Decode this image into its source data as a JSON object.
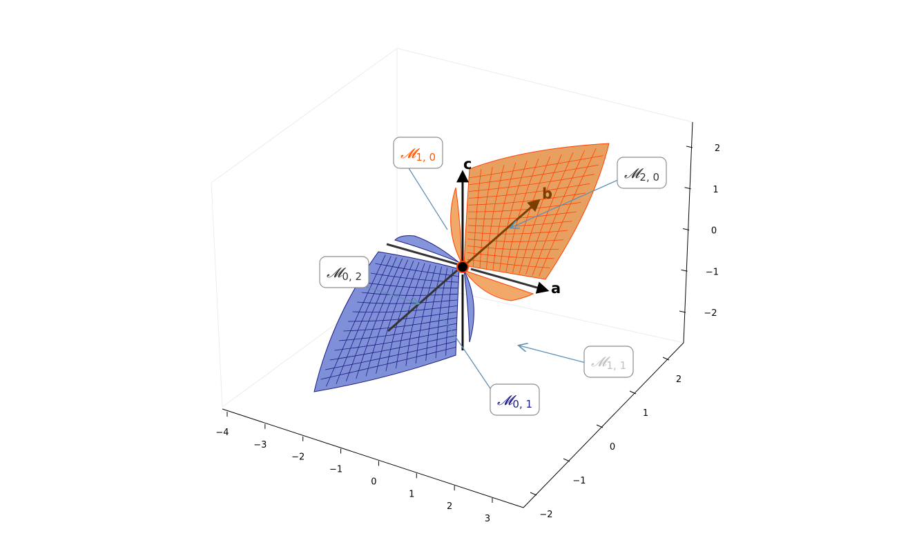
{
  "figure": {
    "axes": {
      "x": {
        "ticks": [
          "−4",
          "−3",
          "−2",
          "−1",
          "0",
          "1",
          "2",
          "3"
        ]
      },
      "y": {
        "ticks": [
          "−2",
          "−1",
          "0",
          "1",
          "2"
        ]
      },
      "z": {
        "ticks": [
          "−2",
          "−1",
          "0",
          "1",
          "2"
        ]
      }
    },
    "basis_vectors": [
      {
        "label": "a",
        "color": "#000000"
      },
      {
        "label": "b",
        "color": "#7a3f00"
      },
      {
        "label": "c",
        "color": "#000000"
      }
    ],
    "surfaces": [
      {
        "name": "M2,0",
        "color": "#e8a060",
        "mesh_color": "#ff4000"
      },
      {
        "name": "M0,2",
        "color": "#7f8fd8",
        "mesh_color": "#1a1a80"
      }
    ],
    "callouts": [
      {
        "symbol": "𝓜",
        "sub": "1, 0",
        "color": "#ff5500"
      },
      {
        "symbol": "𝓜",
        "sub": "2, 0",
        "color": "#333333"
      },
      {
        "symbol": "𝓜",
        "sub": "0, 2",
        "color": "#333333"
      },
      {
        "symbol": "𝓜",
        "sub": "1, 1",
        "color": "#c0c0c0"
      },
      {
        "symbol": "𝓜",
        "sub": "0, 1",
        "color": "#1a1a80"
      }
    ],
    "colors": {
      "arrow": "#5f8fb5",
      "origin": "#000000",
      "origin_ring": "#ff4000"
    }
  }
}
